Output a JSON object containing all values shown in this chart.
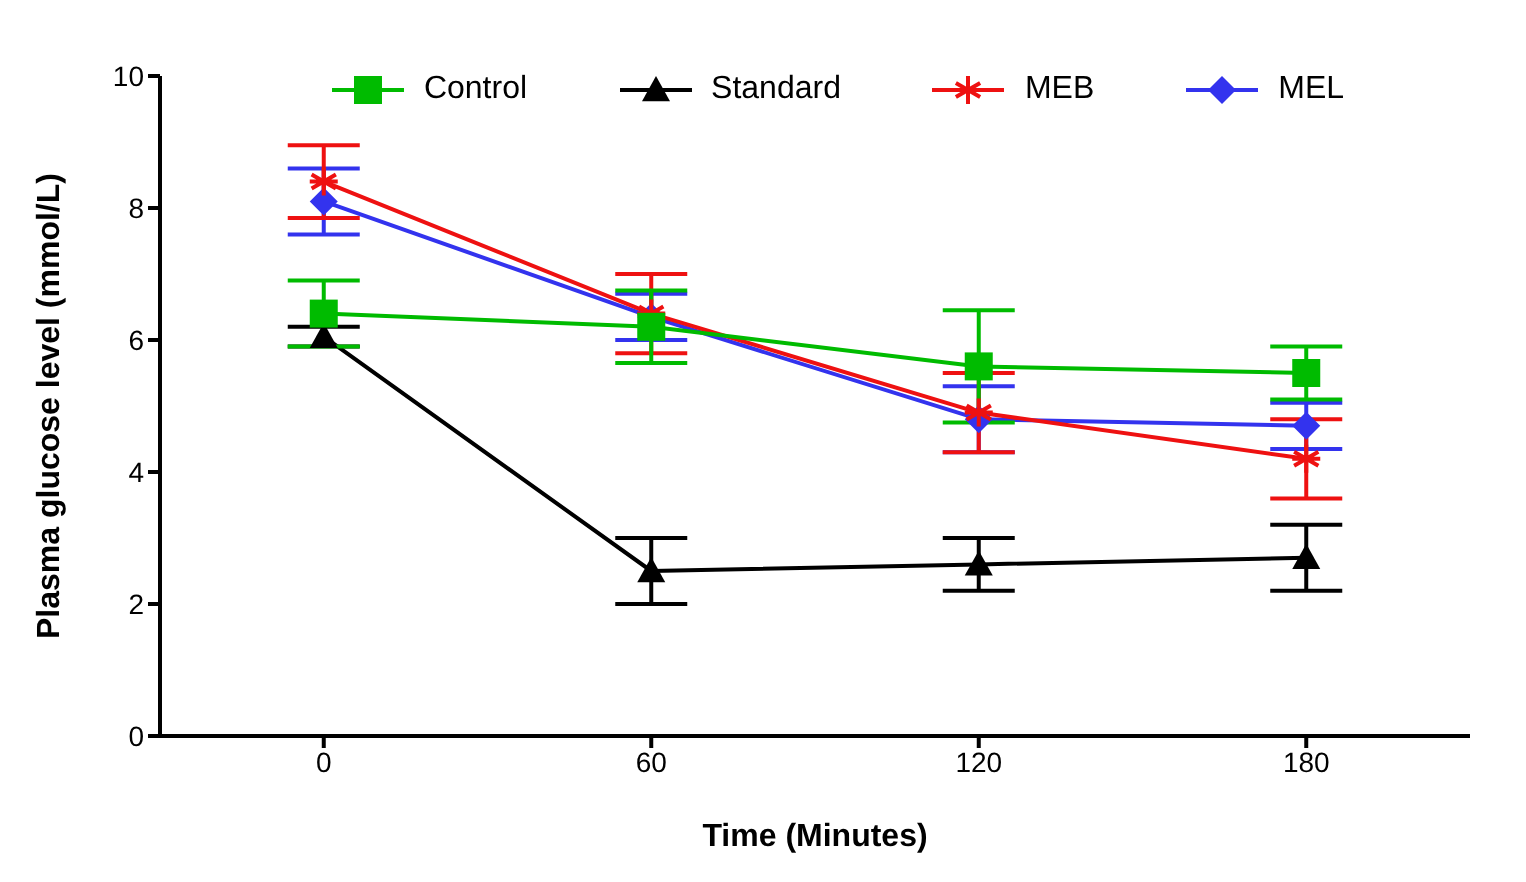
{
  "chart_data": {
    "type": "line",
    "xlabel": "Time (Minutes)",
    "ylabel": "Plasma glucose level (mmol/L)",
    "x": [
      0,
      60,
      120,
      180
    ],
    "xlim": [
      -30,
      210
    ],
    "xticks": [
      0,
      60,
      120,
      180
    ],
    "ylim": [
      0,
      10
    ],
    "yticks": [
      0,
      2,
      4,
      6,
      8,
      10
    ],
    "grid": false,
    "legend": "top",
    "line_style": "solid",
    "series": [
      {
        "name": "Control",
        "color": "#00bb00",
        "marker": "square",
        "values": [
          6.4,
          6.2,
          5.6,
          5.5
        ],
        "errors": [
          0.5,
          0.55,
          0.85,
          0.4
        ]
      },
      {
        "name": "Standard",
        "color": "#000000",
        "marker": "triangle",
        "values": [
          6.05,
          2.5,
          2.6,
          2.7
        ],
        "errors": [
          0.15,
          0.5,
          0.4,
          0.5
        ]
      },
      {
        "name": "MEB",
        "color": "#ee1111",
        "marker": "cross",
        "values": [
          8.4,
          6.4,
          4.9,
          4.2
        ],
        "errors": [
          0.55,
          0.6,
          0.6,
          0.6
        ]
      },
      {
        "name": "MEL",
        "color": "#3333ee",
        "marker": "diamond",
        "values": [
          8.1,
          6.35,
          4.8,
          4.7
        ],
        "errors": [
          0.5,
          0.35,
          0.5,
          0.35
        ]
      }
    ]
  }
}
